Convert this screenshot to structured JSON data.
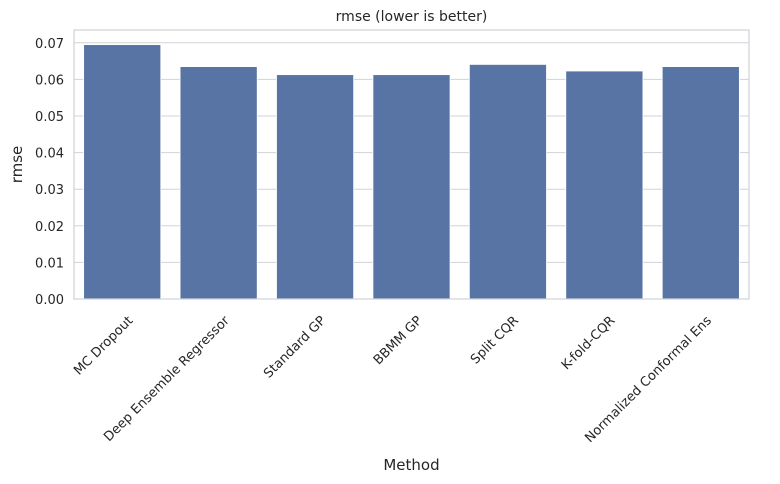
{
  "chart_data": {
    "type": "bar",
    "title": "rmse (lower is better)",
    "xlabel": "Method",
    "ylabel": "rmse",
    "categories": [
      "MC Dropout",
      "Deep Ensemble Regressor",
      "Standard GP",
      "BBMM GP",
      "Split CQR",
      "K-fold-CQR",
      "Normalized Conformal Ens"
    ],
    "values": [
      0.0695,
      0.0635,
      0.0613,
      0.0613,
      0.0641,
      0.0623,
      0.0635
    ],
    "ylim": [
      0,
      0.0735
    ],
    "yticks": [
      "0.00",
      "0.01",
      "0.02",
      "0.03",
      "0.04",
      "0.05",
      "0.06",
      "0.07"
    ],
    "grid": true,
    "bar_color": "#5874a5",
    "grid_color": "#d0d3d8",
    "spine_color": "#d0d3d8"
  }
}
